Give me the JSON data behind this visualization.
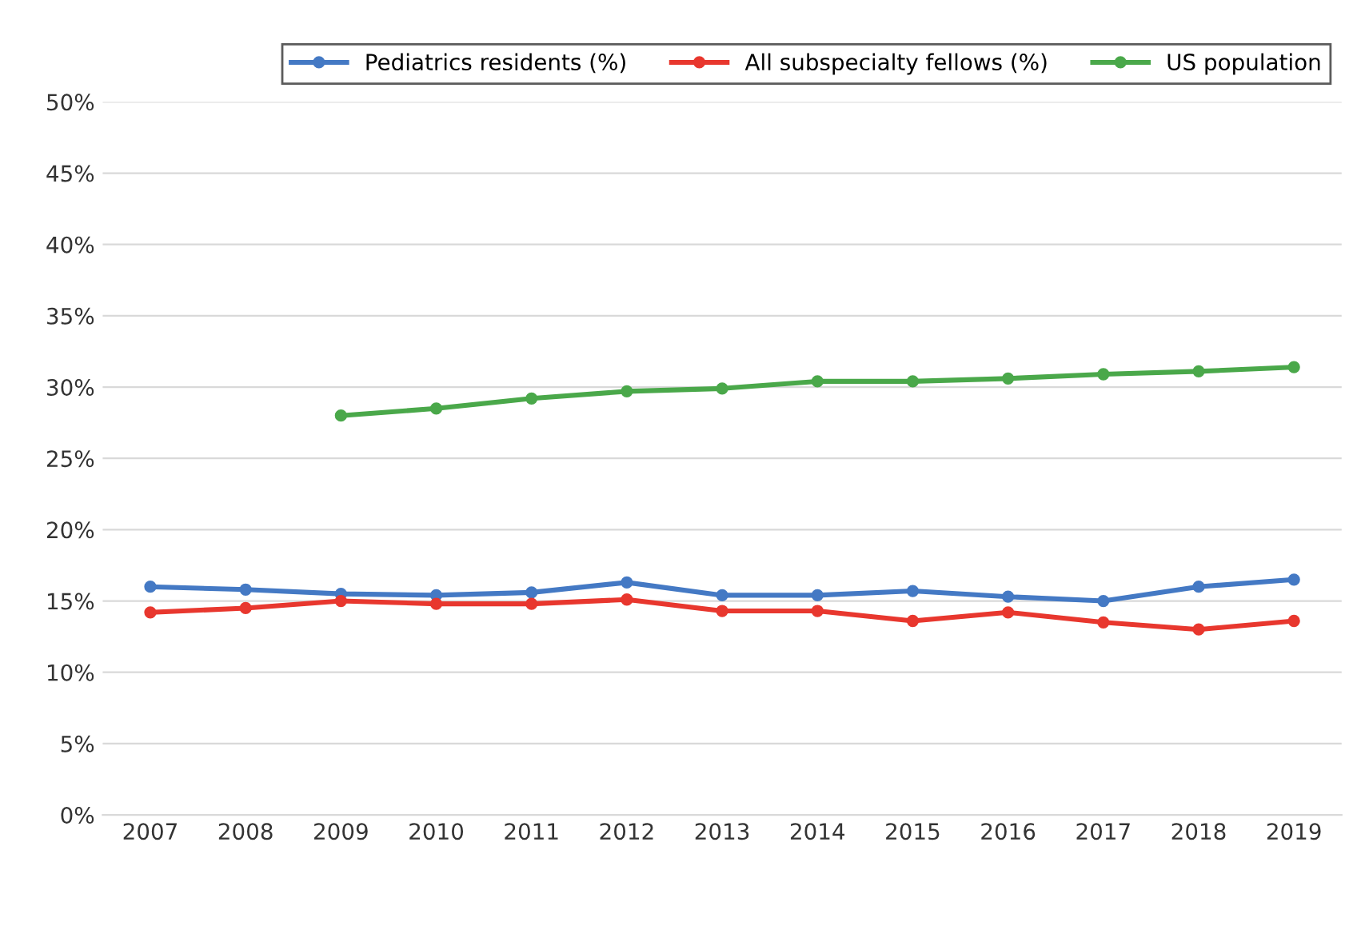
{
  "chart_data": {
    "type": "line",
    "categories": [
      "2007",
      "2008",
      "2009",
      "2010",
      "2011",
      "2012",
      "2013",
      "2014",
      "2015",
      "2016",
      "2017",
      "2018",
      "2019"
    ],
    "series": [
      {
        "name": "Pediatrics residents (%)",
        "color": "#4479c4",
        "values": [
          16.0,
          15.8,
          15.5,
          15.4,
          15.6,
          16.3,
          15.4,
          15.4,
          15.7,
          15.3,
          15.0,
          16.0,
          16.5
        ]
      },
      {
        "name": "All subspecialty fellows (%)",
        "color": "#e8372e",
        "values": [
          14.2,
          14.5,
          15.0,
          14.8,
          14.8,
          15.1,
          14.3,
          14.3,
          13.6,
          14.2,
          13.5,
          13.0,
          13.6
        ]
      },
      {
        "name": "US population",
        "color": "#4aa84a",
        "values": [
          null,
          null,
          28.0,
          28.5,
          29.2,
          29.7,
          29.9,
          30.4,
          30.4,
          30.6,
          30.9,
          31.1,
          31.4
        ]
      }
    ],
    "ylim": [
      0,
      50
    ],
    "yticks": [
      {
        "value": 0,
        "label": "0%"
      },
      {
        "value": 5,
        "label": "5%"
      },
      {
        "value": 10,
        "label": "10%"
      },
      {
        "value": 15,
        "label": "15%"
      },
      {
        "value": 20,
        "label": "20%"
      },
      {
        "value": 25,
        "label": "25%"
      },
      {
        "value": 30,
        "label": "30%"
      },
      {
        "value": 35,
        "label": "35%"
      },
      {
        "value": 40,
        "label": "40%"
      },
      {
        "value": 45,
        "label": "45%"
      },
      {
        "value": 50,
        "label": "50%"
      }
    ],
    "grid": "y",
    "legend": "top right",
    "marker": "circle",
    "line_style": "solid"
  }
}
